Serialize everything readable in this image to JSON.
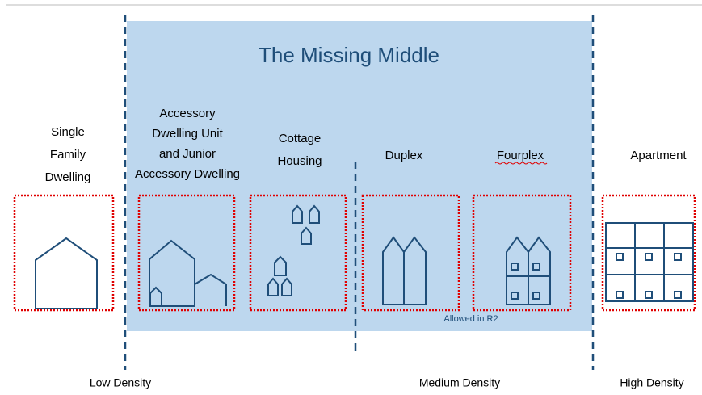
{
  "title": "The Missing Middle",
  "columns": [
    {
      "label": [
        "Single",
        "Family",
        "Dwelling"
      ]
    },
    {
      "label": [
        "Accessory",
        "Dwelling Unit",
        "and Junior",
        "Accessory Dwelling"
      ]
    },
    {
      "label": [
        "Cottage",
        "Housing"
      ]
    },
    {
      "label": [
        "Duplex"
      ]
    },
    {
      "label": [
        "Fourplex"
      ]
    },
    {
      "label": [
        "Apartment"
      ]
    }
  ],
  "note": "Allowed in R2",
  "density": [
    "Low Density",
    "Medium Density",
    "High Density"
  ]
}
